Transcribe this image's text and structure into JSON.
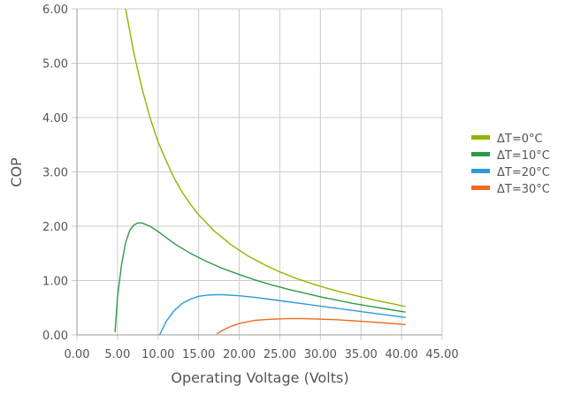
{
  "chart_data": {
    "type": "line",
    "title": "",
    "xlabel": "Operating Voltage (Volts)",
    "ylabel": "COP",
    "xlim": [
      0,
      45
    ],
    "ylim": [
      0,
      6
    ],
    "x_ticks": [
      "0.00",
      "5.00",
      "10.00",
      "15.00",
      "20.00",
      "25.00",
      "30.00",
      "35.00",
      "40.00",
      "45.00"
    ],
    "y_ticks": [
      "0.00",
      "1.00",
      "2.00",
      "3.00",
      "4.00",
      "5.00",
      "6.00"
    ],
    "grid": true,
    "legend_position": "right",
    "series": [
      {
        "name": "ΔT=0°C",
        "color": "#8db600",
        "points": [
          [
            6.0,
            6.0
          ],
          [
            7.0,
            5.2
          ],
          [
            8.0,
            4.55
          ],
          [
            9.0,
            4.0
          ],
          [
            10.0,
            3.55
          ],
          [
            11.0,
            3.2
          ],
          [
            12.0,
            2.88
          ],
          [
            13.0,
            2.62
          ],
          [
            14.0,
            2.4
          ],
          [
            15.0,
            2.21
          ],
          [
            17.0,
            1.9
          ],
          [
            19.0,
            1.66
          ],
          [
            21.0,
            1.46
          ],
          [
            23.0,
            1.3
          ],
          [
            25.0,
            1.16
          ],
          [
            27.0,
            1.04
          ],
          [
            29.0,
            0.94
          ],
          [
            31.0,
            0.85
          ],
          [
            33.0,
            0.77
          ],
          [
            35.0,
            0.7
          ],
          [
            37.0,
            0.63
          ],
          [
            39.0,
            0.57
          ],
          [
            40.5,
            0.52
          ]
        ]
      },
      {
        "name": "ΔT=10°C",
        "color": "#2e9a47",
        "points": [
          [
            4.7,
            0.05
          ],
          [
            5.0,
            0.7
          ],
          [
            5.5,
            1.3
          ],
          [
            6.0,
            1.7
          ],
          [
            6.5,
            1.92
          ],
          [
            7.0,
            2.02
          ],
          [
            7.5,
            2.06
          ],
          [
            8.0,
            2.06
          ],
          [
            9.0,
            2.0
          ],
          [
            10.0,
            1.9
          ],
          [
            12.0,
            1.68
          ],
          [
            14.0,
            1.5
          ],
          [
            16.0,
            1.35
          ],
          [
            18.0,
            1.22
          ],
          [
            20.0,
            1.11
          ],
          [
            22.0,
            1.01
          ],
          [
            24.0,
            0.92
          ],
          [
            26.0,
            0.84
          ],
          [
            28.0,
            0.77
          ],
          [
            30.0,
            0.7
          ],
          [
            32.0,
            0.64
          ],
          [
            34.0,
            0.58
          ],
          [
            36.0,
            0.53
          ],
          [
            38.0,
            0.48
          ],
          [
            40.5,
            0.42
          ]
        ]
      },
      {
        "name": "ΔT=20°C",
        "color": "#2b9cd8",
        "points": [
          [
            10.2,
            0.0
          ],
          [
            11.0,
            0.25
          ],
          [
            12.0,
            0.45
          ],
          [
            13.0,
            0.58
          ],
          [
            14.0,
            0.66
          ],
          [
            15.0,
            0.71
          ],
          [
            16.0,
            0.73
          ],
          [
            17.0,
            0.74
          ],
          [
            18.0,
            0.74
          ],
          [
            20.0,
            0.72
          ],
          [
            22.0,
            0.69
          ],
          [
            24.0,
            0.65
          ],
          [
            26.0,
            0.61
          ],
          [
            28.0,
            0.57
          ],
          [
            30.0,
            0.53
          ],
          [
            32.0,
            0.49
          ],
          [
            34.0,
            0.45
          ],
          [
            36.0,
            0.41
          ],
          [
            38.0,
            0.37
          ],
          [
            40.5,
            0.32
          ]
        ]
      },
      {
        "name": "ΔT=30°C",
        "color": "#f06a1f",
        "points": [
          [
            17.2,
            0.02
          ],
          [
            18.0,
            0.09
          ],
          [
            19.0,
            0.16
          ],
          [
            20.0,
            0.21
          ],
          [
            21.0,
            0.24
          ],
          [
            22.0,
            0.27
          ],
          [
            24.0,
            0.29
          ],
          [
            26.0,
            0.3
          ],
          [
            28.0,
            0.3
          ],
          [
            30.0,
            0.29
          ],
          [
            32.0,
            0.28
          ],
          [
            34.0,
            0.26
          ],
          [
            36.0,
            0.24
          ],
          [
            38.0,
            0.22
          ],
          [
            40.5,
            0.19
          ]
        ]
      }
    ]
  }
}
